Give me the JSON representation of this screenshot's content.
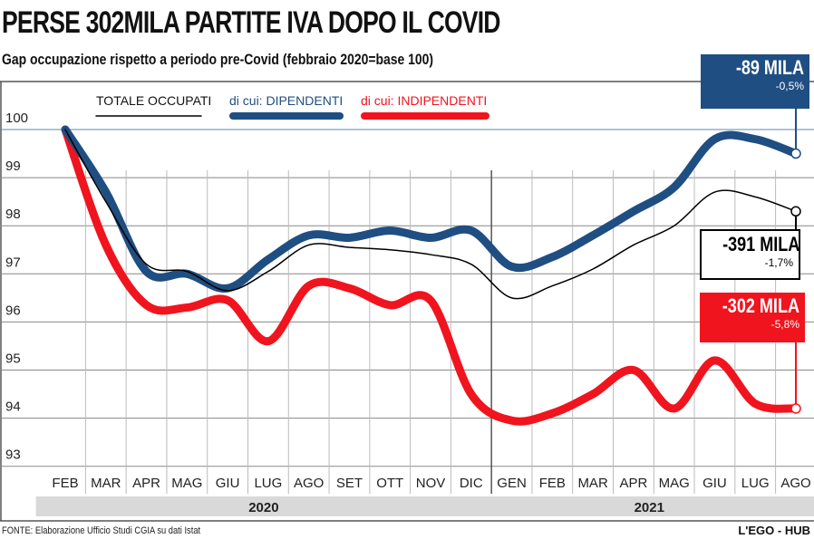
{
  "title": "PERSE 302MILA PARTITE IVA DOPO IL COVID",
  "subtitle": "Gap occupazione rispetto a periodo pre-Covid (febbraio 2020=base 100)",
  "footer": "FONTE: Elaborazione Ufficio Studi CGIA su dati Istat",
  "brand": "L'EGO - HUB",
  "callouts": [
    {
      "value": "-89 MILA",
      "pct": "-0,5%",
      "color": "#1f4e82"
    },
    {
      "value": "-391 MILA",
      "pct": "-1,7%",
      "color": "#000000"
    },
    {
      "value": "-302 MILA",
      "pct": "-5,8%",
      "color": "#f0141e"
    }
  ],
  "chart_data": {
    "type": "line",
    "title": "Gap occupazione rispetto a periodo pre-Covid (febbraio 2020=base 100)",
    "x": [
      "FEB",
      "MAR",
      "APR",
      "MAG",
      "GIU",
      "LUG",
      "AGO",
      "SET",
      "OTT",
      "NOV",
      "DIC",
      "GEN",
      "FEB",
      "MAR",
      "APR",
      "MAG",
      "GIU",
      "LUG",
      "AGO"
    ],
    "years": [
      {
        "label": "2020",
        "from": 0,
        "to": 10
      },
      {
        "label": "2021",
        "from": 11,
        "to": 18
      }
    ],
    "ylim": [
      93,
      100
    ],
    "yticks": [
      "93",
      "94",
      "95",
      "96",
      "97",
      "98",
      "99",
      "100"
    ],
    "grid": true,
    "legend_position": "top",
    "series": [
      {
        "name": "TOTALE OCCUPATI",
        "color": "#000000",
        "values": [
          100,
          98.5,
          97.2,
          97.05,
          96.65,
          97.05,
          97.6,
          97.55,
          97.5,
          97.4,
          97.2,
          96.5,
          96.75,
          97.1,
          97.6,
          98.0,
          98.7,
          98.6,
          98.3
        ]
      },
      {
        "name": "di cui: DIPENDENTI",
        "color": "#1f4e82",
        "values": [
          100,
          98.7,
          97.05,
          97.0,
          96.7,
          97.3,
          97.8,
          97.75,
          97.9,
          97.75,
          97.9,
          97.15,
          97.35,
          97.8,
          98.3,
          98.8,
          99.8,
          99.8,
          99.5
        ]
      },
      {
        "name": "di cui: INDIPENDENTI",
        "color": "#f0141e",
        "values": [
          100,
          97.6,
          96.35,
          96.3,
          96.45,
          95.6,
          96.75,
          96.7,
          96.35,
          96.45,
          94.5,
          93.95,
          94.1,
          94.5,
          95.0,
          94.2,
          95.2,
          94.3,
          94.2
        ]
      }
    ]
  }
}
